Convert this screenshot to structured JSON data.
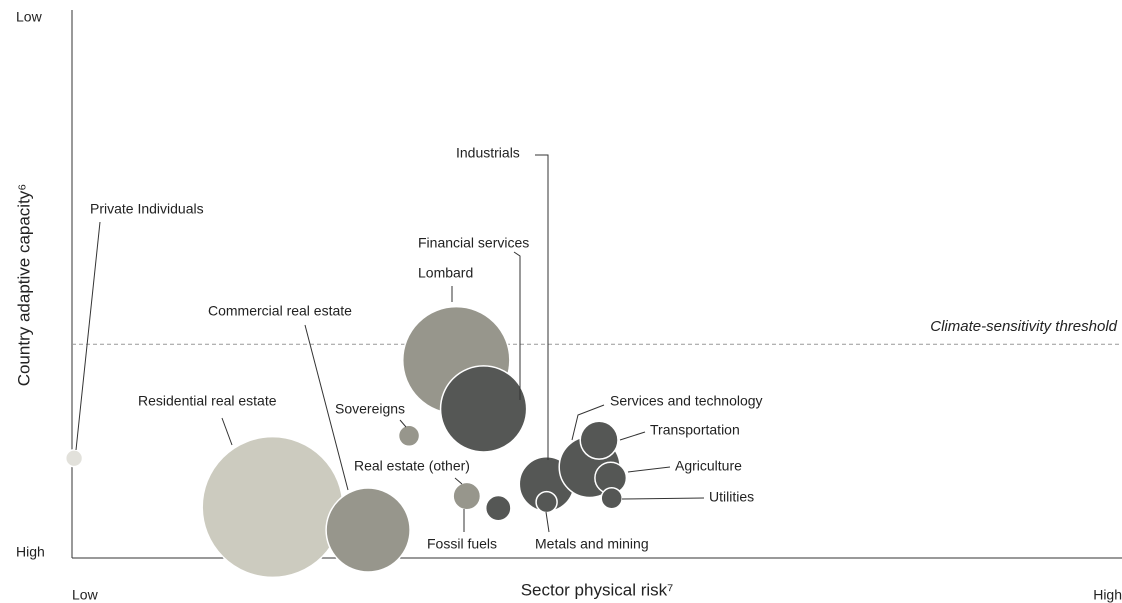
{
  "chart_data": {
    "type": "bubble",
    "x_label": "Sector physical risk⁷",
    "y_label": "Country adaptive capacity⁶",
    "xlim": [
      0,
      100
    ],
    "ylim": [
      0,
      100
    ],
    "xticks": [
      {
        "value": 0,
        "label": "Low"
      },
      {
        "value": 100,
        "label": "High"
      }
    ],
    "yticks": [
      {
        "value": 0,
        "label": "High"
      },
      {
        "value": 100,
        "label": "Low"
      }
    ],
    "grid": false,
    "threshold": {
      "value": 39,
      "label": "Climate-sensitivity threshold"
    },
    "categories": [
      "Private Individuals",
      "Residential real estate",
      "Commercial real estate",
      "Sovereigns",
      "Lombard",
      "Financial services",
      "Real estate (other)",
      "Fossil fuels",
      "Industrials",
      "Metals and mining",
      "Services and technology",
      "Transportation",
      "Agriculture",
      "Utilities"
    ],
    "x": [
      0.2,
      19.1,
      28.2,
      32.1,
      36.6,
      39.2,
      37.6,
      40.6,
      45.2,
      45.2,
      49.3,
      50.2,
      51.3,
      51.4
    ],
    "values": [
      18.2,
      9.3,
      5.1,
      22.3,
      36.1,
      27.2,
      11.3,
      9.1,
      13.5,
      10.2,
      16.6,
      21.5,
      14.6,
      10.9
    ],
    "sizes": [
      0.8,
      6.7,
      4.0,
      1.0,
      5.1,
      4.1,
      1.3,
      1.2,
      2.6,
      1.0,
      2.9,
      1.8,
      1.5,
      1.0
    ],
    "colors": [
      "#e2e1db",
      "#cccbbf",
      "#97968c",
      "#97968c",
      "#97968c",
      "#555755",
      "#97968c",
      "#555755",
      "#555755",
      "#555755",
      "#555755",
      "#555755",
      "#555755",
      "#555755"
    ]
  }
}
